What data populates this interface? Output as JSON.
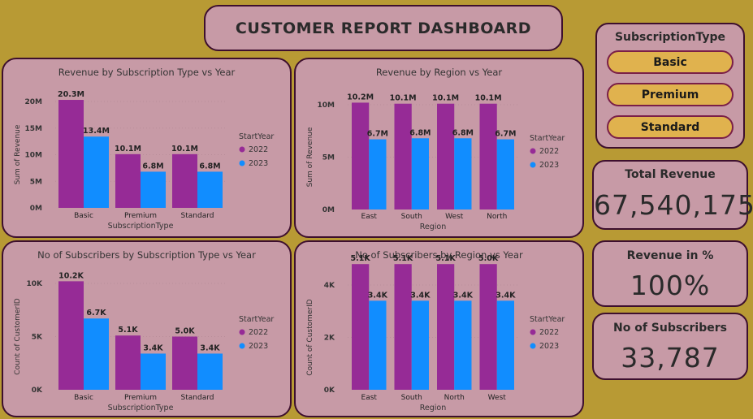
{
  "theme": {
    "background": "#b89a34",
    "panel": "#c79aa6",
    "border": "#3d0f2e",
    "slicer_button": "#e0b24e",
    "color_2022": "#962b96",
    "color_2023": "#118dff"
  },
  "header": {
    "title": "CUSTOMER REPORT DASHBOARD"
  },
  "slicer": {
    "title": "SubscriptionType",
    "options": [
      "Basic",
      "Premium",
      "Standard"
    ]
  },
  "cards": {
    "total_revenue": {
      "label": "Total Revenue",
      "value": "67,540,175"
    },
    "revenue_pct": {
      "label": "Revenue in %",
      "value": "100%"
    },
    "subscribers": {
      "label": "No of Subscribers",
      "value": "33,787"
    }
  },
  "chart_data": [
    {
      "type": "bar",
      "title": "Revenue by Subscription Type vs Year",
      "xlabel": "SubscriptionType",
      "ylabel": "Sum of Revenue",
      "categories": [
        "Basic",
        "Premium",
        "Standard"
      ],
      "yticks": [
        "0M",
        "5M",
        "10M",
        "15M",
        "20M"
      ],
      "ylim": [
        0,
        20
      ],
      "legend_title": "StartYear",
      "legend_position": "right",
      "series": [
        {
          "name": "2022",
          "values": [
            20.3,
            10.1,
            10.1
          ],
          "labels": [
            "20.3M",
            "10.1M",
            "10.1M"
          ]
        },
        {
          "name": "2023",
          "values": [
            13.4,
            6.8,
            6.8
          ],
          "labels": [
            "13.4M",
            "6.8M",
            "6.8M"
          ]
        }
      ]
    },
    {
      "type": "bar",
      "title": "Revenue by Region vs Year",
      "xlabel": "Region",
      "ylabel": "Sum of Revenue",
      "categories": [
        "East",
        "South",
        "West",
        "North"
      ],
      "yticks": [
        "0M",
        "5M",
        "10M"
      ],
      "ylim": [
        0,
        10
      ],
      "legend_title": "StartYear",
      "legend_position": "right",
      "series": [
        {
          "name": "2022",
          "values": [
            10.2,
            10.1,
            10.1,
            10.1
          ],
          "labels": [
            "10.2M",
            "10.1M",
            "10.1M",
            "10.1M"
          ]
        },
        {
          "name": "2023",
          "values": [
            6.7,
            6.8,
            6.8,
            6.7
          ],
          "labels": [
            "6.7M",
            "6.8M",
            "6.8M",
            "6.7M"
          ]
        }
      ]
    },
    {
      "type": "bar",
      "title": "No of Subscribers by Subscription Type vs Year",
      "xlabel": "SubscriptionType",
      "ylabel": "Count of CustomerID",
      "categories": [
        "Basic",
        "Premium",
        "Standard"
      ],
      "yticks": [
        "0K",
        "5K",
        "10K"
      ],
      "ylim": [
        0,
        10
      ],
      "legend_title": "StartYear",
      "legend_position": "right",
      "series": [
        {
          "name": "2022",
          "values": [
            10.2,
            5.1,
            5.0
          ],
          "labels": [
            "10.2K",
            "5.1K",
            "5.0K"
          ]
        },
        {
          "name": "2023",
          "values": [
            6.7,
            3.4,
            3.4
          ],
          "labels": [
            "6.7K",
            "3.4K",
            "3.4K"
          ]
        }
      ]
    },
    {
      "type": "bar",
      "title": "No of Subscribers by Region vs Year",
      "xlabel": "Region",
      "ylabel": "Count of CustomerID",
      "categories": [
        "East",
        "South",
        "North",
        "West"
      ],
      "yticks": [
        "0K",
        "2K",
        "4K"
      ],
      "ylim": [
        0,
        4
      ],
      "legend_title": "StartYear",
      "legend_position": "right",
      "series": [
        {
          "name": "2022",
          "values": [
            5.1,
            5.1,
            5.1,
            5.0
          ],
          "labels": [
            "5.1K",
            "5.1K",
            "5.1K",
            "5.0K"
          ]
        },
        {
          "name": "2023",
          "values": [
            3.4,
            3.4,
            3.4,
            3.4
          ],
          "labels": [
            "3.4K",
            "3.4K",
            "3.4K",
            "3.4K"
          ]
        }
      ]
    }
  ]
}
